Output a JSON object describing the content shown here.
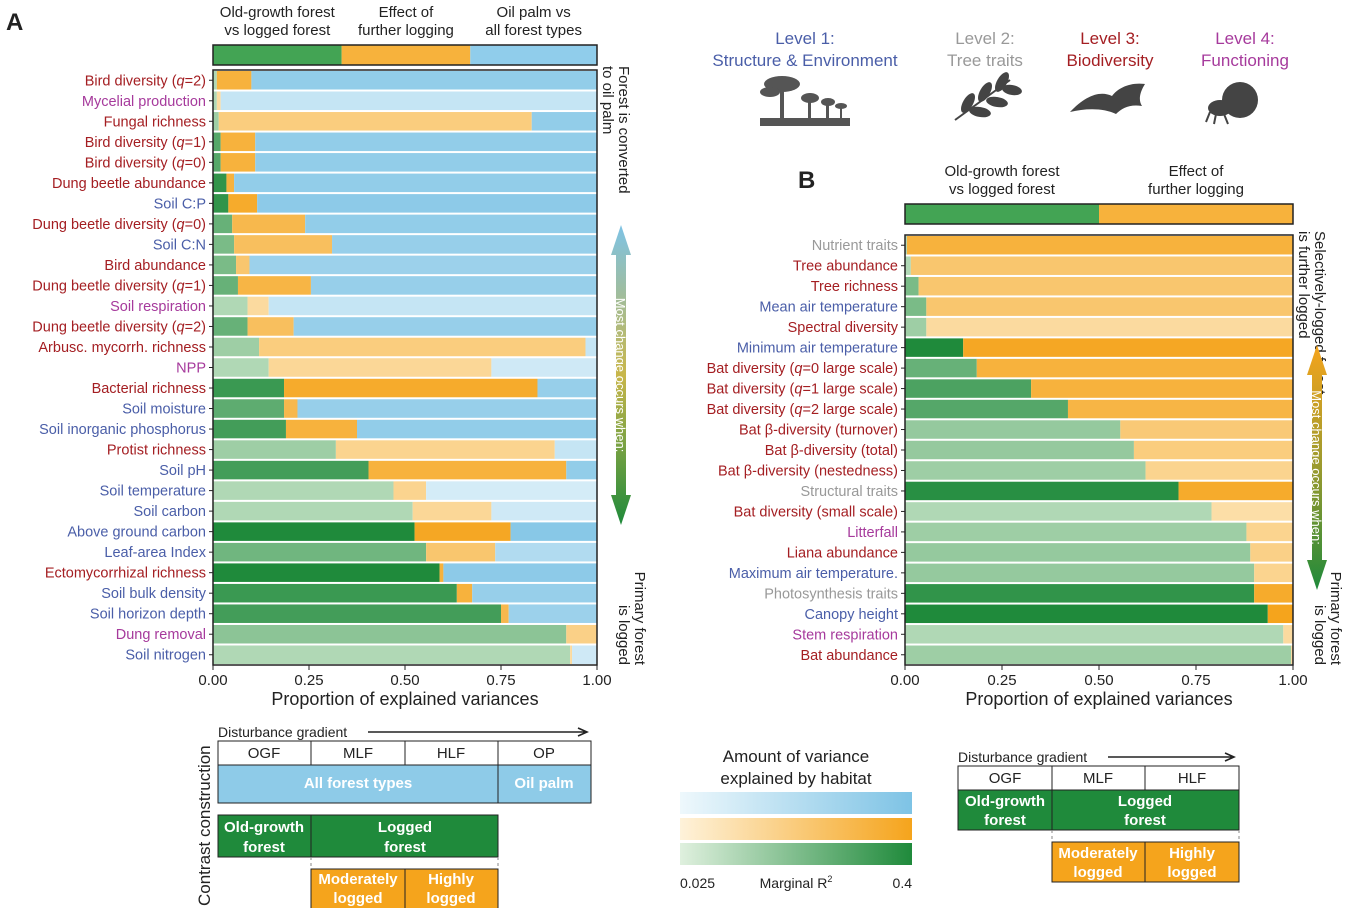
{
  "colors": {
    "level1": "#4a5ea8",
    "level2": "#999999",
    "level3": "#a41e22",
    "level4": "#a63a9c",
    "green_low": "#d4ebd3",
    "green_high": "#1f8a3b",
    "orange_low": "#fde8c0",
    "orange_high": "#f5a41c",
    "blue_low": "#e3f3fa",
    "blue_high": "#7ec3e5"
  },
  "levels": [
    {
      "name": "Level 1:",
      "sub": "Structure & Environment",
      "icon": "forest-silhouette-icon"
    },
    {
      "name": "Level 2:",
      "sub": "Tree traits",
      "icon": "leaf-icon"
    },
    {
      "name": "Level 3:",
      "sub": "Biodiversity",
      "icon": "bat-icon"
    },
    {
      "name": "Level 4:",
      "sub": "Functioning",
      "icon": "dung-beetle-icon"
    }
  ],
  "chart_data": [
    {
      "panel": "A",
      "type": "bar",
      "stacked": "horizontal",
      "xlabel": "Proportion of explained variances",
      "xlim": [
        0,
        1
      ],
      "xticks": [
        "0.00",
        "0.25",
        "0.50",
        "0.75",
        "1.00"
      ],
      "header": [
        {
          "label": [
            "Old-growth forest",
            "vs logged forest"
          ],
          "share": 0.335
        },
        {
          "label": [
            "Effect of",
            "further logging"
          ],
          "share": 0.335
        },
        {
          "label": [
            "Oil palm vs",
            "all forest types"
          ],
          "share": 0.33
        }
      ],
      "right_top": [
        "Forest is converted",
        "to oil palm"
      ],
      "right_mid": "Most change occurs when:",
      "right_bottom": [
        "Primary forest",
        "is logged"
      ],
      "series": [
        "Old-growth forest vs logged forest",
        "Effect of further logging",
        "Oil palm vs all forest types"
      ],
      "rows": [
        {
          "label": "Bird diversity (q=2)",
          "level": 3,
          "g": 0.01,
          "o": 0.09,
          "b": 0.9,
          "gi": 0.2,
          "oi": 0.8,
          "bi": 0.8
        },
        {
          "label": "Mycelial production",
          "level": 4,
          "g": 0.01,
          "o": 0.01,
          "b": 0.98,
          "gi": 0.2,
          "oi": 0.2,
          "bi": 0.3
        },
        {
          "label": "Fungal richness",
          "level": 3,
          "g": 0.015,
          "o": 0.815,
          "b": 0.17,
          "gi": 0.3,
          "oi": 0.4,
          "bi": 0.8
        },
        {
          "label": "Bird diversity (q=1)",
          "level": 3,
          "g": 0.02,
          "o": 0.09,
          "b": 0.89,
          "gi": 0.7,
          "oi": 0.8,
          "bi": 0.8
        },
        {
          "label": "Bird diversity (q=0)",
          "level": 3,
          "g": 0.02,
          "o": 0.09,
          "b": 0.89,
          "gi": 0.7,
          "oi": 0.8,
          "bi": 0.8
        },
        {
          "label": "Dung beetle abundance",
          "level": 3,
          "g": 0.035,
          "o": 0.02,
          "b": 0.945,
          "gi": 0.9,
          "oi": 0.8,
          "bi": 0.8
        },
        {
          "label": "Soil C:P",
          "level": 1,
          "g": 0.04,
          "o": 0.075,
          "b": 0.885,
          "gi": 0.9,
          "oi": 0.9,
          "bi": 0.85
        },
        {
          "label": "Dung beetle diversity (q=0)",
          "level": 3,
          "g": 0.05,
          "o": 0.19,
          "b": 0.76,
          "gi": 0.6,
          "oi": 0.7,
          "bi": 0.8
        },
        {
          "label": "Soil C:N",
          "level": 1,
          "g": 0.055,
          "o": 0.255,
          "b": 0.69,
          "gi": 0.5,
          "oi": 0.6,
          "bi": 0.75
        },
        {
          "label": "Bird abundance",
          "level": 3,
          "g": 0.06,
          "o": 0.035,
          "b": 0.905,
          "gi": 0.5,
          "oi": 0.5,
          "bi": 0.7
        },
        {
          "label": "Dung beetle diversity (q=1)",
          "level": 3,
          "g": 0.065,
          "o": 0.19,
          "b": 0.745,
          "gi": 0.6,
          "oi": 0.75,
          "bi": 0.75
        },
        {
          "label": "Soil respiration",
          "level": 4,
          "g": 0.09,
          "o": 0.055,
          "b": 0.855,
          "gi": 0.2,
          "oi": 0.2,
          "bi": 0.3
        },
        {
          "label": "Dung beetle diversity (q=2)",
          "level": 3,
          "g": 0.09,
          "o": 0.12,
          "b": 0.79,
          "gi": 0.6,
          "oi": 0.6,
          "bi": 0.75
        },
        {
          "label": "Arbusc. mycorrh. richness",
          "level": 3,
          "g": 0.12,
          "o": 0.85,
          "b": 0.03,
          "gi": 0.3,
          "oi": 0.4,
          "bi": 0.3
        },
        {
          "label": "NPP",
          "level": 4,
          "g": 0.145,
          "o": 0.58,
          "b": 0.275,
          "gi": 0.2,
          "oi": 0.25,
          "bi": 0.2
        },
        {
          "label": "Bacterial richness",
          "level": 3,
          "g": 0.185,
          "o": 0.66,
          "b": 0.155,
          "gi": 0.85,
          "oi": 0.9,
          "bi": 0.75
        },
        {
          "label": "Soil moisture",
          "level": 1,
          "g": 0.185,
          "o": 0.035,
          "b": 0.78,
          "gi": 0.65,
          "oi": 0.7,
          "bi": 0.75
        },
        {
          "label": "Soil inorganic phosphorus",
          "level": 1,
          "g": 0.19,
          "o": 0.185,
          "b": 0.625,
          "gi": 0.8,
          "oi": 0.8,
          "bi": 0.8
        },
        {
          "label": "Protist richness",
          "level": 3,
          "g": 0.32,
          "o": 0.57,
          "b": 0.11,
          "gi": 0.3,
          "oi": 0.3,
          "bi": 0.3
        },
        {
          "label": "Soil pH",
          "level": 1,
          "g": 0.405,
          "o": 0.515,
          "b": 0.08,
          "gi": 0.8,
          "oi": 0.8,
          "bi": 0.8
        },
        {
          "label": "Soil temperature",
          "level": 1,
          "g": 0.47,
          "o": 0.085,
          "b": 0.445,
          "gi": 0.2,
          "oi": 0.3,
          "bi": 0.15
        },
        {
          "label": "Soil carbon",
          "level": 1,
          "g": 0.52,
          "o": 0.205,
          "b": 0.275,
          "gi": 0.2,
          "oi": 0.25,
          "bi": 0.2
        },
        {
          "label": "Above ground carbon",
          "level": 1,
          "g": 0.525,
          "o": 0.25,
          "b": 0.225,
          "gi": 1.0,
          "oi": 0.95,
          "bi": 0.9
        },
        {
          "label": "Leaf-area Index",
          "level": 1,
          "g": 0.555,
          "o": 0.18,
          "b": 0.265,
          "gi": 0.55,
          "oi": 0.5,
          "bi": 0.5
        },
        {
          "label": "Ectomycorrhizal richness",
          "level": 3,
          "g": 0.59,
          "o": 0.01,
          "b": 0.4,
          "gi": 1.0,
          "oi": 0.8,
          "bi": 0.85
        },
        {
          "label": "Soil bulk density",
          "level": 1,
          "g": 0.635,
          "o": 0.04,
          "b": 0.325,
          "gi": 0.85,
          "oi": 0.8,
          "bi": 0.75
        },
        {
          "label": "Soil horizon depth",
          "level": 1,
          "g": 0.75,
          "o": 0.02,
          "b": 0.23,
          "gi": 0.8,
          "oi": 0.7,
          "bi": 0.7
        },
        {
          "label": "Dung removal",
          "level": 4,
          "g": 0.92,
          "o": 0.08,
          "b": 0.0,
          "gi": 0.4,
          "oi": 0.35,
          "bi": 0.2
        },
        {
          "label": "Soil nitrogen",
          "level": 1,
          "g": 0.93,
          "o": 0.005,
          "b": 0.065,
          "gi": 0.2,
          "oi": 0.2,
          "bi": 0.2
        }
      ]
    },
    {
      "panel": "B",
      "type": "bar",
      "stacked": "horizontal",
      "xlabel": "Proportion of explained variances",
      "xlim": [
        0,
        1
      ],
      "xticks": [
        "0.00",
        "0.25",
        "0.50",
        "0.75",
        "1.00"
      ],
      "header": [
        {
          "label": [
            "Old-growth forest",
            "vs logged forest"
          ],
          "share": 0.5
        },
        {
          "label": [
            "Effect of",
            "further logging"
          ],
          "share": 0.5
        }
      ],
      "right_top": [
        "Selectively-logged forest",
        "is further logged"
      ],
      "right_mid": "Most change occurs when:",
      "right_bottom": [
        "Primary forest",
        "is logged"
      ],
      "series": [
        "Old-growth forest vs logged forest",
        "Effect of further logging"
      ],
      "rows": [
        {
          "label": "Nutrient traits",
          "level": 2,
          "g": 0.005,
          "o": 0.995,
          "gi": 0.2,
          "oi": 0.8
        },
        {
          "label": "Tree abundance",
          "level": 3,
          "g": 0.015,
          "o": 0.985,
          "gi": 0.2,
          "oi": 0.5
        },
        {
          "label": "Tree richness",
          "level": 3,
          "g": 0.035,
          "o": 0.965,
          "gi": 0.5,
          "oi": 0.5
        },
        {
          "label": "Mean air temperature",
          "level": 1,
          "g": 0.055,
          "o": 0.945,
          "gi": 0.5,
          "oi": 0.5
        },
        {
          "label": "Spectral diversity",
          "level": 3,
          "g": 0.055,
          "o": 0.945,
          "gi": 0.3,
          "oi": 0.2
        },
        {
          "label": "Minimum air temperature",
          "level": 1,
          "g": 0.15,
          "o": 0.85,
          "gi": 1.0,
          "oi": 0.95
        },
        {
          "label": "Bat diversity (q=0 large scale)",
          "level": 3,
          "g": 0.185,
          "o": 0.815,
          "gi": 0.6,
          "oi": 0.8
        },
        {
          "label": "Bat diversity (q=1 large scale)",
          "level": 3,
          "g": 0.325,
          "o": 0.675,
          "gi": 0.75,
          "oi": 0.8
        },
        {
          "label": "Bat diversity (q=2 large scale)",
          "level": 3,
          "g": 0.42,
          "o": 0.58,
          "gi": 0.7,
          "oi": 0.75
        },
        {
          "label": "Bat β-diversity (turnover)",
          "level": 3,
          "g": 0.555,
          "o": 0.445,
          "gi": 0.35,
          "oi": 0.45
        },
        {
          "label": "Bat β-diversity (total)",
          "level": 3,
          "g": 0.59,
          "o": 0.41,
          "gi": 0.35,
          "oi": 0.4
        },
        {
          "label": "Bat β-diversity (nestedness)",
          "level": 3,
          "g": 0.62,
          "o": 0.38,
          "gi": 0.3,
          "oi": 0.3
        },
        {
          "label": "Structural traits",
          "level": 2,
          "g": 0.705,
          "o": 0.295,
          "gi": 0.95,
          "oi": 0.9
        },
        {
          "label": "Bat diversity (small scale)",
          "level": 3,
          "g": 0.79,
          "o": 0.21,
          "gi": 0.2,
          "oi": 0.15
        },
        {
          "label": "Litterfall",
          "level": 4,
          "g": 0.88,
          "o": 0.12,
          "gi": 0.3,
          "oi": 0.3
        },
        {
          "label": "Liana abundance",
          "level": 3,
          "g": 0.89,
          "o": 0.11,
          "gi": 0.35,
          "oi": 0.35
        },
        {
          "label": "Maximum air temperature.",
          "level": 1,
          "g": 0.9,
          "o": 0.1,
          "gi": 0.35,
          "oi": 0.3
        },
        {
          "label": "Photosynthesis traits",
          "level": 2,
          "g": 0.9,
          "o": 0.1,
          "gi": 0.9,
          "oi": 0.9
        },
        {
          "label": "Canopy height",
          "level": 1,
          "g": 0.935,
          "o": 0.065,
          "gi": 1.0,
          "oi": 1.0
        },
        {
          "label": "Stem respiration",
          "level": 4,
          "g": 0.975,
          "o": 0.025,
          "gi": 0.2,
          "oi": 0.2
        },
        {
          "label": "Bat abundance",
          "level": 3,
          "g": 0.995,
          "o": 0.005,
          "gi": 0.3,
          "oi": 0.2
        }
      ]
    }
  ],
  "legend": {
    "title": [
      "Amount of variance",
      "explained by habitat"
    ],
    "min_label": "0.025",
    "max_label": "0.4",
    "mid_label": "Marginal R",
    "mid_sup": "2"
  },
  "contrast_a": {
    "side_label": "Contrast construction",
    "gradient_label": "Disturbance gradient",
    "cols": [
      "OGF",
      "MLF",
      "HLF",
      "OP"
    ],
    "all_forest": "All forest types",
    "oil_palm": "Oil palm",
    "ogf": [
      "Old-growth",
      "forest"
    ],
    "logged": [
      "Logged",
      "forest"
    ],
    "moderately": [
      "Moderately",
      "logged"
    ],
    "highly": [
      "Highly",
      "logged"
    ]
  },
  "contrast_b": {
    "gradient_label": "Disturbance gradient",
    "cols": [
      "OGF",
      "MLF",
      "HLF"
    ],
    "ogf": [
      "Old-growth",
      "forest"
    ],
    "logged": [
      "Logged",
      "forest"
    ],
    "moderately": [
      "Moderately",
      "logged"
    ],
    "highly": [
      "Highly",
      "logged"
    ]
  },
  "panel_labels": [
    "A",
    "B"
  ]
}
